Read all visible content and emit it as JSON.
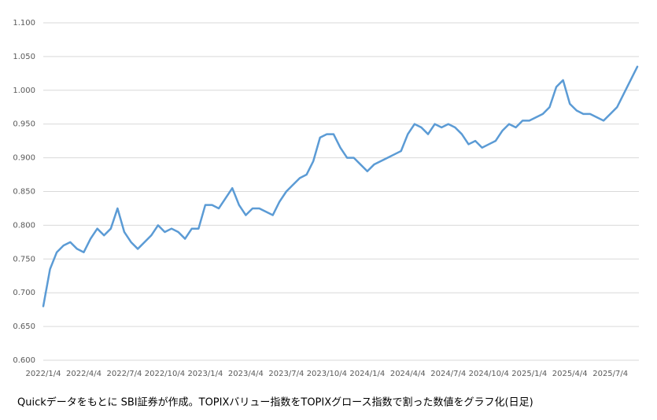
{
  "chart_data": {
    "type": "line",
    "note": "Quickデータをもとに SBI証券が作成。TOPIXバリュー指数をTOPIXグロース指数で割った数値をグラフ化(日足)",
    "categories": [
      "2022/1/4",
      null,
      null,
      null,
      null,
      null,
      "2022/4/4",
      null,
      null,
      null,
      null,
      null,
      "2022/7/4",
      null,
      null,
      null,
      null,
      null,
      "2022/10/4",
      null,
      null,
      null,
      null,
      null,
      "2023/1/4",
      null,
      null,
      null,
      null,
      null,
      "2023/4/4",
      null,
      null,
      null,
      null,
      null,
      "2023/7/4",
      null,
      null,
      null,
      null,
      null,
      "2023/10/4",
      null,
      null,
      null,
      null,
      null,
      "2024/1/4",
      null,
      null,
      null,
      null,
      null,
      "2024/4/4",
      null,
      null,
      null,
      null,
      null,
      "2024/7/4",
      null,
      null,
      null,
      null,
      null,
      "2024/10/4",
      null,
      null,
      null,
      null,
      null,
      "2025/1/4",
      null,
      null,
      null,
      null,
      null,
      "2025/4/4",
      null,
      null,
      null,
      null,
      null,
      "2025/7/4",
      null,
      null,
      null,
      null
    ],
    "values": [
      0.68,
      0.735,
      0.76,
      0.77,
      0.775,
      0.765,
      0.76,
      0.78,
      0.795,
      0.785,
      0.795,
      0.825,
      0.79,
      0.775,
      0.765,
      0.775,
      0.785,
      0.8,
      0.79,
      0.795,
      0.79,
      0.78,
      0.795,
      0.795,
      0.83,
      0.83,
      0.825,
      0.84,
      0.855,
      0.83,
      0.815,
      0.825,
      0.825,
      0.82,
      0.815,
      0.835,
      0.85,
      0.86,
      0.87,
      0.875,
      0.895,
      0.93,
      0.935,
      0.935,
      0.915,
      0.9,
      0.9,
      0.89,
      0.88,
      0.89,
      0.895,
      0.9,
      0.905,
      0.91,
      0.935,
      0.95,
      0.945,
      0.935,
      0.95,
      0.945,
      0.95,
      0.945,
      0.935,
      0.92,
      0.925,
      0.915,
      0.92,
      0.925,
      0.94,
      0.95,
      0.945,
      0.955,
      0.955,
      0.96,
      0.965,
      0.975,
      1.005,
      1.015,
      0.98,
      0.97,
      0.965,
      0.965,
      0.96,
      0.955,
      0.965,
      0.975,
      0.995,
      1.015,
      1.035
    ],
    "color": "#5b9bd5",
    "ylim": [
      0.6,
      1.1
    ],
    "yticks": [
      {
        "value": 0.6,
        "label": "0.600"
      },
      {
        "value": 0.65,
        "label": "0.650"
      },
      {
        "value": 0.7,
        "label": "0.700"
      },
      {
        "value": 0.75,
        "label": "0.750"
      },
      {
        "value": 0.8,
        "label": "0.800"
      },
      {
        "value": 0.85,
        "label": "0.850"
      },
      {
        "value": 0.9,
        "label": "0.900"
      },
      {
        "value": 0.95,
        "label": "0.950"
      },
      {
        "value": 1.0,
        "label": "1.000"
      },
      {
        "value": 1.05,
        "label": "1.050"
      },
      {
        "value": 1.1,
        "label": "1.100"
      }
    ],
    "grid": true
  }
}
